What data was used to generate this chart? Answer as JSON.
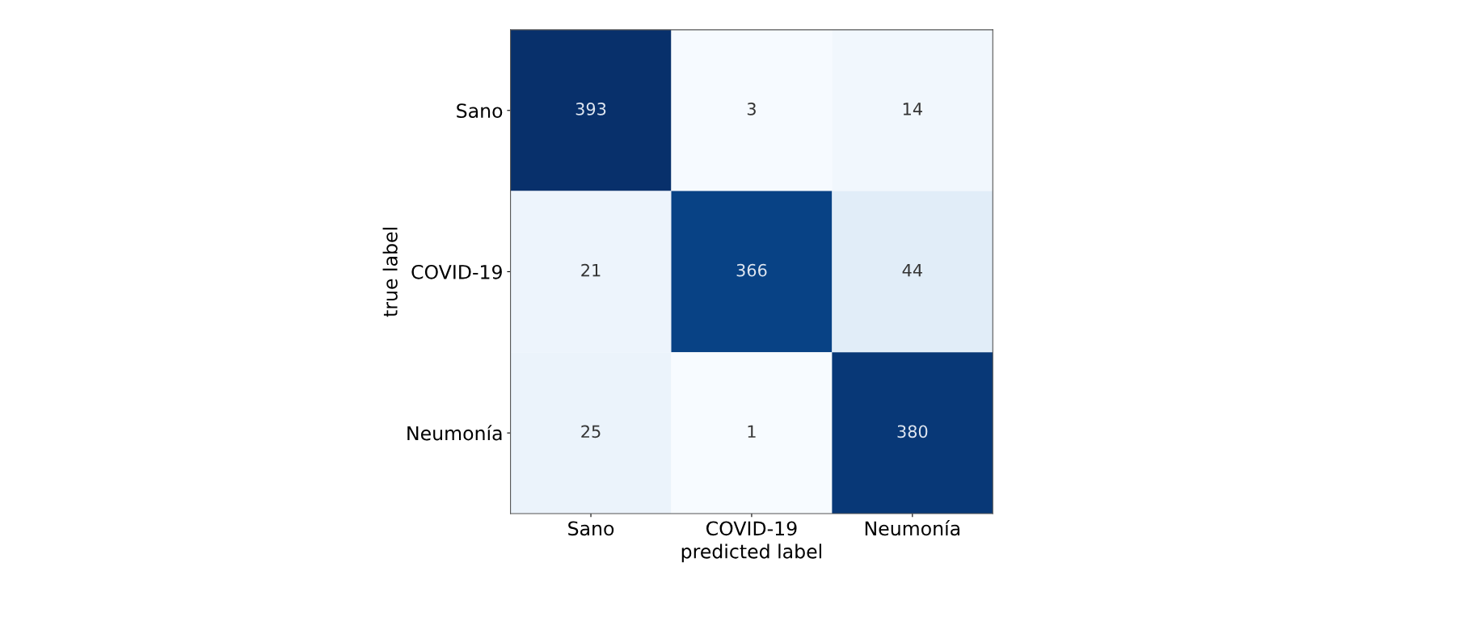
{
  "chart_data": {
    "type": "heatmap",
    "xlabel": "predicted label",
    "ylabel": "true label",
    "categories": [
      "Sano",
      "COVID-19",
      "Neumonía"
    ],
    "y_categories": [
      "Sano",
      "COVID-19",
      "Neumonía"
    ],
    "cells": [
      [
        393,
        3,
        14
      ],
      [
        21,
        366,
        44
      ],
      [
        25,
        1,
        380
      ]
    ],
    "data_labels": true,
    "grid": false
  }
}
